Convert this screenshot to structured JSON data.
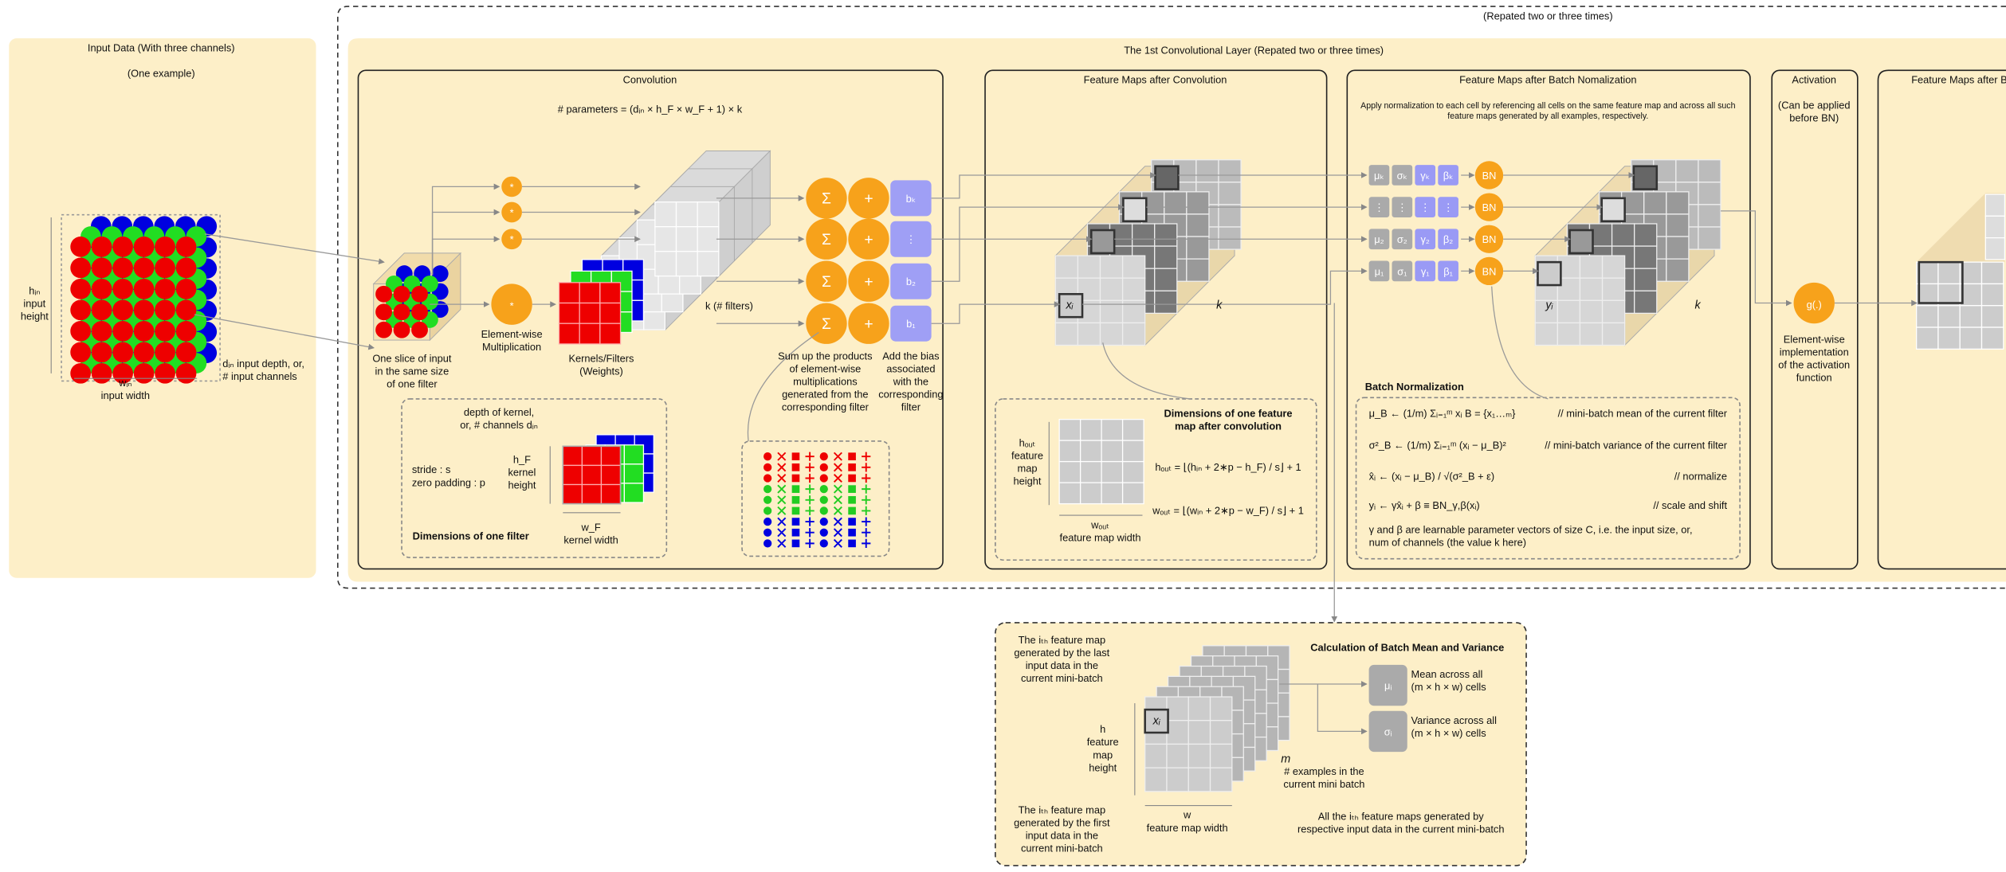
{
  "repeat_label": "(Repated two or three times)",
  "input": {
    "title": "Input Data (With three channels)",
    "subtitle": "(One example)",
    "height": [
      "hᵢₙ",
      "input",
      "height"
    ],
    "width": [
      "wᵢₙ",
      "input width"
    ],
    "depth": [
      "dᵢₙ input depth, or,",
      "# input channels"
    ]
  },
  "layer_title": "The 1st Convolutional Layer (Repated two or three times)",
  "convolution": {
    "title": "Convolution",
    "parameters": "# parameters = (dᵢₙ × h_F × w_F + 1) × k",
    "slice": [
      "One slice of input",
      "in the same size",
      "of one filter"
    ],
    "multiply_symbol": "*",
    "multiply": [
      "Element-wise",
      "Multiplication"
    ],
    "kernels": [
      "Kernels/Filters",
      "(Weights)"
    ],
    "filters": "k (# filters)",
    "sum_symbol": "Σ",
    "plus_symbol": "+",
    "biases": [
      "bₖ",
      "⋮",
      "b₂",
      "b₁"
    ],
    "sum": [
      "Sum up the products",
      "of element-wise",
      "multiplications",
      "generated from the",
      "corresponding filter"
    ],
    "bias": [
      "Add the bias",
      "associated",
      "with the",
      "corresponding",
      "filter"
    ],
    "filter_box": {
      "depth": [
        "depth of kernel,",
        "or, # channels dᵢₙ"
      ],
      "stride": [
        "stride : s",
        "zero padding : p"
      ],
      "height": [
        "h_F",
        "kernel",
        "height"
      ],
      "width": [
        "w_F",
        "kernel width"
      ],
      "title": "Dimensions of one filter"
    }
  },
  "conv_maps": {
    "title": "Feature Maps after Convolution",
    "cell": "xᵢ",
    "depth": "k",
    "box": {
      "height": [
        "hₒᵤₜ",
        "feature",
        "map",
        "height"
      ],
      "width": [
        "wₒᵤₜ",
        "feature map width"
      ],
      "title": [
        "Dimensions of one feature",
        "map after convolution"
      ],
      "formulas": [
        "hₒᵤₜ = ⌊(hᵢₙ + 2∗p − h_F) / s⌋ + 1",
        "wₒᵤₜ = ⌊(wᵢₙ + 2∗p − w_F) / s⌋ + 1"
      ]
    }
  },
  "bn_maps": {
    "title": "Feature Maps after Batch Nomalization",
    "note": [
      "Apply normalization to each cell by referencing all cells on the same feature map and across all such",
      "feature maps generated by all examples, respectively."
    ],
    "params": [
      [
        "μₖ",
        "σₖ",
        "γₖ",
        "βₖ"
      ],
      [
        "⋮",
        "⋮",
        "⋮",
        "⋮"
      ],
      [
        "μ₂",
        "σ₂",
        "γ₂",
        "β₂"
      ],
      [
        "μ₁",
        "σ₁",
        "γ₁",
        "β₁"
      ]
    ],
    "bn": "BN",
    "cell": "yᵢ",
    "depth": "k",
    "section": "Batch Normalization",
    "formulas": [
      {
        "formula": "μ_B ← (1/m) Σᵢ₌₁ᵐ xᵢ    B = {x₁…ₘ}",
        "comment": "// mini-batch mean of the current filter"
      },
      {
        "formula": "σ²_B ← (1/m) Σᵢ₌₁ᵐ (xᵢ − μ_B)²",
        "comment": "// mini-batch variance of the current filter"
      },
      {
        "formula": "x̂ᵢ ← (xᵢ − μ_B) / √(σ²_B + ε)",
        "comment": "// normalize"
      },
      {
        "formula": "yᵢ ← γx̂ᵢ + β ≡ BN_γ,β(xᵢ)",
        "comment": "// scale and shift"
      }
    ],
    "footnote": [
      "γ and β are learnable parameter vectors of size C, i.e. the input size, or,",
      "num of channels (the value k here)"
    ]
  },
  "activation": {
    "title": "Activation",
    "note": [
      "(Can be applied",
      "before BN)"
    ],
    "function": "g(.)",
    "description": [
      "Element-wise",
      "implementation",
      "of the activation",
      "function"
    ]
  },
  "next_maps": {
    "title": "Feature Maps after B"
  },
  "batch_stats": {
    "title": "Calculation of Batch Mean and Variance",
    "last": [
      "The iₜₕ feature map",
      "generated by the last",
      "input data in the",
      "current mini-batch"
    ],
    "first": [
      "The iₜₕ feature map",
      "generated by the first",
      "input data in the",
      "current mini-batch"
    ],
    "height": [
      "h",
      "feature",
      "map",
      "height"
    ],
    "width": [
      "w",
      "feature map width"
    ],
    "cell": "xᵢ",
    "examples": {
      "symbol": "m",
      "text": [
        "# examples in the",
        "current mini batch"
      ]
    },
    "all": [
      "All the iₜₕ feature maps generated by",
      "respective input data in the current mini-batch"
    ],
    "mean": {
      "symbol": "μᵢ",
      "text": [
        "Mean across all",
        "(m × h × w) cells"
      ]
    },
    "variance": {
      "symbol": "σᵢ",
      "text": [
        "Variance across all",
        "(m × h × w) cells"
      ]
    }
  }
}
